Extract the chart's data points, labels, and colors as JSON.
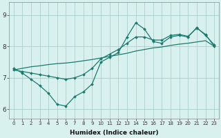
{
  "xlabel": "Humidex (Indice chaleur)",
  "background_color": "#d8f0ee",
  "grid_color": "#b0d4d0",
  "line_color": "#1a7a6e",
  "xlim": [
    -0.5,
    23.5
  ],
  "ylim": [
    5.7,
    9.4
  ],
  "xticks": [
    0,
    1,
    2,
    3,
    4,
    5,
    6,
    7,
    8,
    9,
    10,
    11,
    12,
    13,
    14,
    15,
    16,
    17,
    18,
    19,
    20,
    21,
    22,
    23
  ],
  "yticks": [
    6,
    7,
    8,
    9
  ],
  "line1_x": [
    0,
    1,
    2,
    3,
    4,
    5,
    6,
    7,
    8,
    9,
    10,
    11,
    12,
    13,
    14,
    15,
    16,
    17,
    18,
    19,
    20,
    21,
    22,
    23
  ],
  "line1_y": [
    7.3,
    7.15,
    6.95,
    6.75,
    6.5,
    6.15,
    6.1,
    6.4,
    6.55,
    6.8,
    7.5,
    7.65,
    7.8,
    8.3,
    8.75,
    8.55,
    8.15,
    8.1,
    8.3,
    8.35,
    8.3,
    8.6,
    8.35,
    8.05
  ],
  "line2_x": [
    0,
    1,
    2,
    3,
    4,
    5,
    6,
    7,
    8,
    9,
    10,
    11,
    12,
    13,
    14,
    15,
    16,
    17,
    18,
    19,
    20,
    21,
    22,
    23
  ],
  "line2_y": [
    7.25,
    7.3,
    7.35,
    7.38,
    7.42,
    7.45,
    7.47,
    7.5,
    7.54,
    7.58,
    7.63,
    7.68,
    7.73,
    7.78,
    7.85,
    7.9,
    7.95,
    7.98,
    8.03,
    8.07,
    8.1,
    8.14,
    8.18,
    8.0
  ],
  "line3_x": [
    0,
    1,
    2,
    3,
    4,
    5,
    6,
    7,
    8,
    9,
    10,
    11,
    12,
    13,
    14,
    15,
    16,
    17,
    18,
    19,
    20,
    21,
    22,
    23
  ],
  "line3_y": [
    7.25,
    7.2,
    7.15,
    7.1,
    7.05,
    7.0,
    6.95,
    7.0,
    7.1,
    7.3,
    7.6,
    7.75,
    7.9,
    8.1,
    8.3,
    8.3,
    8.2,
    8.2,
    8.35,
    8.38,
    8.32,
    8.58,
    8.38,
    8.0
  ]
}
